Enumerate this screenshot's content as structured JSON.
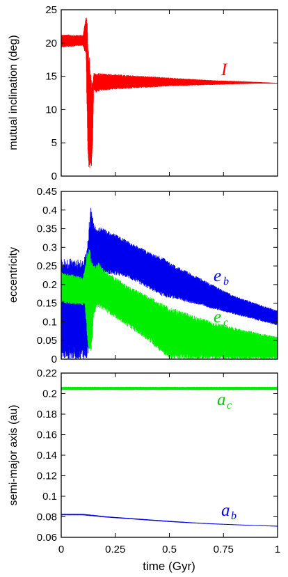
{
  "chart_data": [
    {
      "type": "line",
      "ylabel": "mutual inclination (deg)",
      "ylim": [
        0,
        25
      ],
      "yticks": [
        "0",
        "5",
        "10",
        "15",
        "20",
        "25"
      ],
      "xlim": [
        0,
        1
      ],
      "series": [
        {
          "name": "I",
          "color": "#ff0000",
          "envelope": {
            "x": [
              0,
              0.1,
              0.115,
              0.12,
              0.125,
              0.13,
              0.135,
              0.14,
              0.145,
              0.15,
              0.16,
              0.17,
              0.2,
              0.3,
              0.4,
              0.5,
              0.6,
              0.7,
              0.8,
              0.9,
              1.0
            ],
            "low": [
              19.3,
              19.6,
              18.0,
              8.0,
              1.0,
              0.5,
              2.0,
              1.0,
              4.0,
              13.0,
              12.5,
              12.7,
              12.9,
              13.1,
              13.3,
              13.5,
              13.6,
              13.7,
              13.8,
              13.9,
              13.9
            ],
            "high": [
              21.3,
              21.2,
              24.3,
              23.0,
              20.0,
              18.0,
              16.0,
              14.5,
              14.0,
              15.5,
              15.4,
              15.5,
              15.4,
              15.2,
              15.0,
              14.8,
              14.6,
              14.4,
              14.3,
              14.15,
              14.0
            ]
          }
        }
      ],
      "annotation": "I"
    },
    {
      "type": "line",
      "ylabel": "eccentricity",
      "ylim": [
        0,
        0.45
      ],
      "yticks": [
        "0",
        "0.05",
        "0.1",
        "0.15",
        "0.2",
        "0.25",
        "0.3",
        "0.35",
        "0.4",
        "0.45"
      ],
      "xlim": [
        0,
        1
      ],
      "series": [
        {
          "name": "e_b",
          "color": "#0000ee",
          "envelope": {
            "x": [
              0,
              0.1,
              0.11,
              0.12,
              0.13,
              0.14,
              0.15,
              0.17,
              0.2,
              0.3,
              0.4,
              0.48,
              0.5,
              0.6,
              0.7,
              0.8,
              0.9,
              1.0
            ],
            "low": [
              0.0,
              0.0,
              0.0,
              0.0,
              0.03,
              0.13,
              0.18,
              0.22,
              0.23,
              0.22,
              0.19,
              0.165,
              0.165,
              0.15,
              0.135,
              0.12,
              0.105,
              0.09
            ],
            "high": [
              0.27,
              0.27,
              0.28,
              0.3,
              0.38,
              0.42,
              0.36,
              0.355,
              0.35,
              0.32,
              0.29,
              0.27,
              0.26,
              0.23,
              0.2,
              0.17,
              0.15,
              0.13
            ]
          }
        },
        {
          "name": "e_c",
          "color": "#00ee00",
          "envelope": {
            "x": [
              0,
              0.1,
              0.11,
              0.12,
              0.13,
              0.14,
              0.15,
              0.17,
              0.2,
              0.3,
              0.4,
              0.5,
              0.6,
              0.7,
              0.8,
              0.9,
              1.0
            ],
            "low": [
              0.15,
              0.145,
              0.145,
              0.06,
              0.01,
              0.02,
              0.12,
              0.14,
              0.13,
              0.09,
              0.05,
              0.0,
              0.0,
              0.0,
              0.0,
              0.0,
              0.0
            ],
            "high": [
              0.235,
              0.22,
              0.25,
              0.29,
              0.3,
              0.27,
              0.25,
              0.26,
              0.24,
              0.2,
              0.17,
              0.14,
              0.12,
              0.1,
              0.085,
              0.072,
              0.06
            ]
          }
        }
      ],
      "annotations": [
        "e_b",
        "e_c"
      ]
    },
    {
      "type": "line",
      "ylabel": "semi-major axis (au)",
      "xlabel": "time (Gyr)",
      "ylim": [
        0.06,
        0.22
      ],
      "yticks": [
        "0.06",
        "0.08",
        "0.1",
        "0.12",
        "0.14",
        "0.16",
        "0.18",
        "0.2",
        "0.22"
      ],
      "xlim": [
        0,
        1
      ],
      "xticks": [
        "0",
        "0.25",
        "0.5",
        "0.75",
        "1"
      ],
      "series": [
        {
          "name": "a_c",
          "color": "#00ee00",
          "envelope": {
            "x": [
              0,
              0.25,
              0.5,
              0.75,
              1.0
            ],
            "low": [
              0.2035,
              0.2035,
              0.2035,
              0.2035,
              0.2035
            ],
            "high": [
              0.2065,
              0.2065,
              0.2065,
              0.2065,
              0.2065
            ]
          }
        },
        {
          "name": "a_b",
          "color": "#0000ee",
          "envelope": {
            "x": [
              0,
              0.1,
              0.15,
              0.2,
              0.3,
              0.4,
              0.5,
              0.6,
              0.7,
              0.8,
              0.9,
              1.0
            ],
            "low": [
              0.0815,
              0.0815,
              0.0805,
              0.0795,
              0.078,
              0.0765,
              0.075,
              0.0738,
              0.0728,
              0.072,
              0.0712,
              0.0705
            ],
            "high": [
              0.0828,
              0.0828,
              0.0818,
              0.0805,
              0.079,
              0.0775,
              0.076,
              0.0746,
              0.0735,
              0.0726,
              0.0718,
              0.0712
            ]
          }
        }
      ],
      "annotations": [
        "a_c",
        "a_b"
      ]
    }
  ]
}
